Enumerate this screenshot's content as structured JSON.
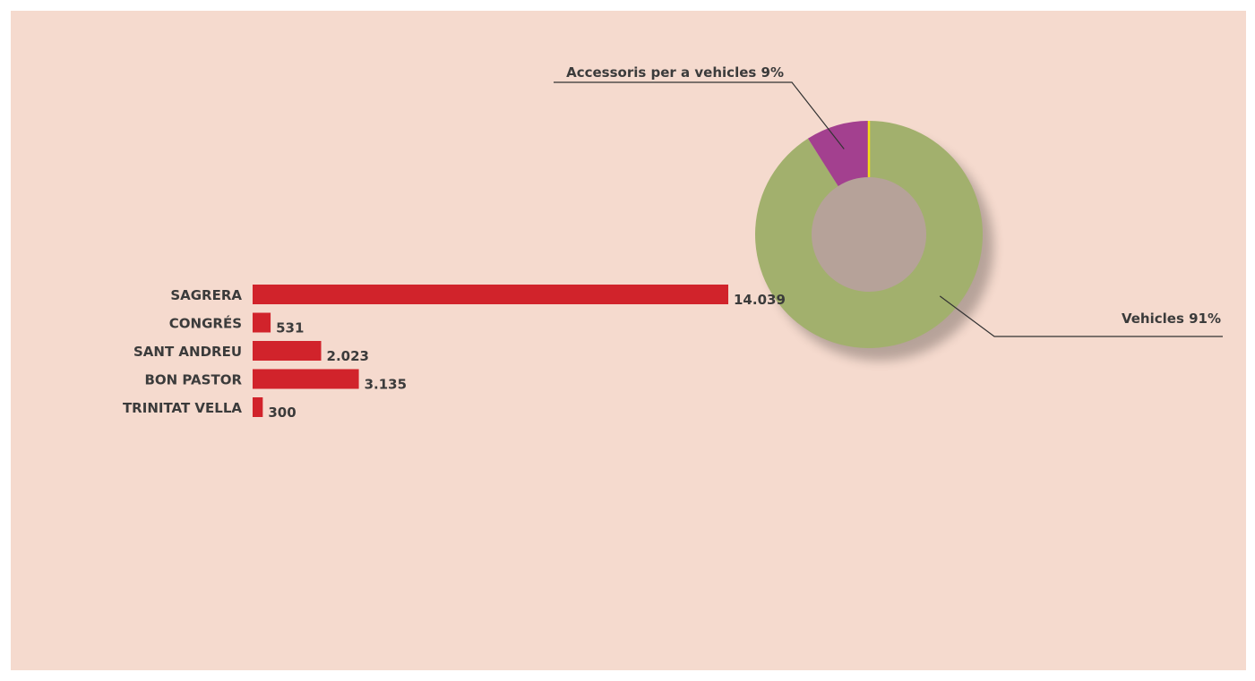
{
  "colors": {
    "panel_background": "#f5dace",
    "bar": "#d1232b",
    "donut_vehicles": "#a2b06d",
    "donut_accessories": "#a3408f",
    "separator": "#f2dd17",
    "leader_line": "#333333",
    "text": "#3b3b3b"
  },
  "chart_data": [
    {
      "type": "pie",
      "variant": "donut",
      "slices": [
        {
          "label": "Vehicles",
          "value": 91,
          "label_text": "Vehicles 91%",
          "color": "#a2b06d"
        },
        {
          "label": "Accessoris per a vehicles",
          "value": 9,
          "label_text": "Accessoris per a vehicles  9%",
          "color": "#a3408f"
        }
      ]
    },
    {
      "type": "bar",
      "orientation": "horizontal",
      "categories": [
        "SAGRERA",
        "CONGRÉS",
        "SANT ANDREU",
        "BON PASTOR",
        "TRINITAT VELLA"
      ],
      "values": [
        14039,
        531,
        2023,
        3135,
        300
      ],
      "value_labels": [
        "14.039",
        "531",
        "2.023",
        "3.135",
        "300"
      ],
      "color": "#d1232b"
    }
  ]
}
